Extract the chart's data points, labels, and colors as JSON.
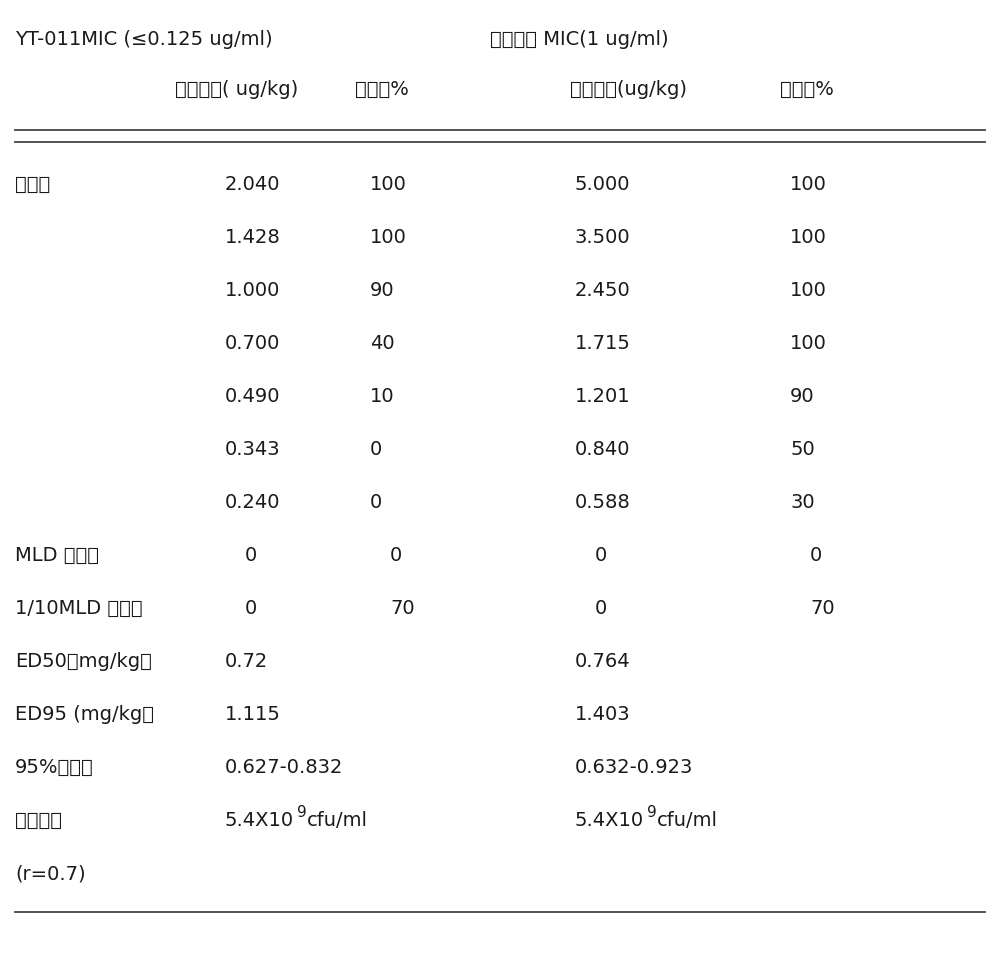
{
  "title_left": "YT-011MIC (≤0.125 ug/ml)",
  "title_right": "万古霉素 MIC(1 ug/ml)",
  "col_header_1": "给药剂量( ug/kg)",
  "col_header_2": "存活率%",
  "col_header_3": "给药剂量(ug/kg)",
  "col_header_4": "存活率%",
  "row_label_zhiliao": "治疗组",
  "row_label_MLD": "MLD 对照组",
  "row_label_110MLD": "1/10MLD 对照组",
  "row_label_ED50": "ED50（mg/kg）",
  "row_label_ED95": "ED95 (mg/kg）",
  "row_label_CI": "95%可信限",
  "row_label_bacteria": "感染菌量",
  "row_label_r": "(r=0.7)",
  "zhiliao_rows": [
    [
      "2.040",
      "100",
      "5.000",
      "100"
    ],
    [
      "1.428",
      "100",
      "3.500",
      "100"
    ],
    [
      "1.000",
      "90",
      "2.450",
      "100"
    ],
    [
      "0.700",
      "40",
      "1.715",
      "100"
    ],
    [
      "0.490",
      "10",
      "1.201",
      "90"
    ],
    [
      "0.343",
      "0",
      "0.840",
      "50"
    ],
    [
      "0.240",
      "0",
      "0.588",
      "30"
    ]
  ],
  "MLD_row": [
    "0",
    "0",
    "0",
    "0"
  ],
  "MLD10_row": [
    "0",
    "70",
    "0",
    "70"
  ],
  "ED50_row": [
    "0.72",
    "",
    "0.764",
    ""
  ],
  "ED95_row": [
    "1.115",
    "",
    "1.403",
    ""
  ],
  "CI_row": [
    "0.627-0.832",
    "",
    "0.632-0.923",
    ""
  ],
  "bacteria_row_left": "5.4X10",
  "bacteria_sup": "9",
  "bacteria_suffix": "cfu/ml",
  "bg_color": "#ffffff",
  "text_color": "#1a1a1a",
  "line_color": "#444444"
}
